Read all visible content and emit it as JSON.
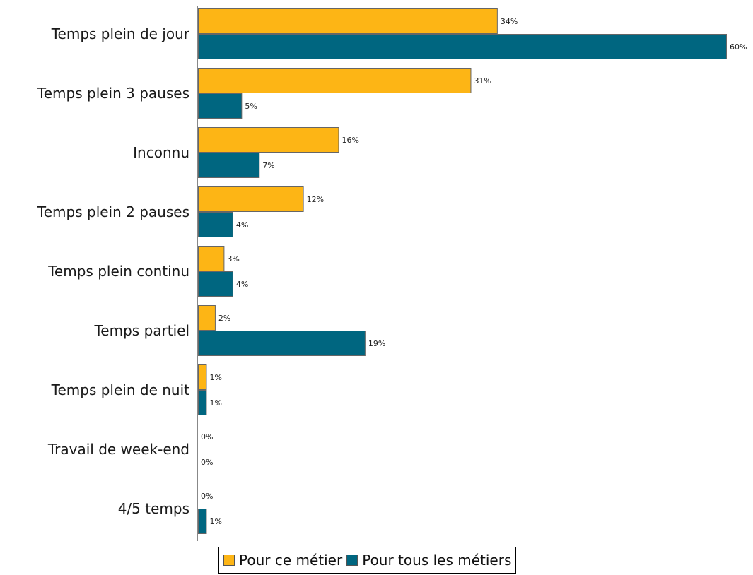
{
  "chart_data": {
    "type": "bar",
    "orientation": "horizontal",
    "title": "",
    "xlabel": "",
    "ylabel": "",
    "categories": [
      "Temps plein de jour",
      "Temps plein 3 pauses",
      "Inconnu",
      "Temps plein 2 pauses",
      "Temps plein continu",
      "Temps partiel",
      "Temps plein de nuit",
      "Travail de week-end",
      "4/5 temps"
    ],
    "series": [
      {
        "name": "Pour ce métier",
        "color": "#FDB515",
        "values": [
          34,
          31,
          16,
          12,
          3,
          2,
          1,
          0,
          0
        ],
        "labels": [
          "34%",
          "31%",
          "16%",
          "12%",
          "3%",
          "2%",
          "1%",
          "0%",
          "0%"
        ]
      },
      {
        "name": "Pour tous les métiers",
        "color": "#006680",
        "values": [
          60,
          5,
          7,
          4,
          4,
          19,
          1,
          0,
          1
        ],
        "labels": [
          "60%",
          "5%",
          "7%",
          "4%",
          "4%",
          "19%",
          "1%",
          "0%",
          "1%"
        ]
      }
    ],
    "xlim": [
      0,
      60
    ],
    "grid": false,
    "legend_position": "bottom"
  }
}
